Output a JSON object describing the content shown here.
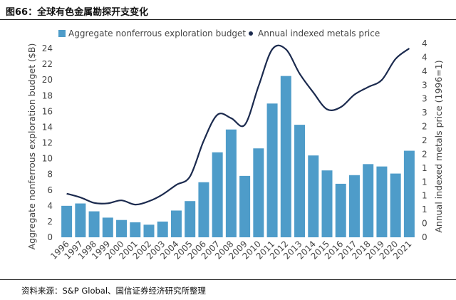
{
  "figure_title": "图66：全球有色金属勘探开支变化",
  "source_note": "资料来源：S&P Global、国信证券经济研究所整理",
  "colors": {
    "bar": "#4e9cc9",
    "line": "#1b2a4e",
    "axis_text": "#444444"
  },
  "chart_data": {
    "type": "bar",
    "categories": [
      "1996",
      "1997",
      "1998",
      "1999",
      "2000",
      "2001",
      "2002",
      "2003",
      "2004",
      "2005",
      "2006",
      "2007",
      "2008",
      "2009",
      "2010",
      "2011",
      "2012",
      "2013",
      "2014",
      "2015",
      "2016",
      "2017",
      "2018",
      "2019",
      "2020",
      "2021"
    ],
    "series": [
      {
        "name": "Aggregate nonferrous exploration budget",
        "type": "bar",
        "axis": "left",
        "values": [
          4.0,
          4.3,
          3.3,
          2.5,
          2.2,
          1.9,
          1.6,
          2.0,
          3.4,
          4.6,
          7.0,
          10.8,
          13.7,
          7.8,
          11.3,
          17.0,
          20.5,
          14.3,
          10.4,
          8.5,
          6.8,
          7.9,
          9.3,
          9.0,
          8.1,
          11.0
        ]
      },
      {
        "name": "Annual indexed metals price",
        "type": "line",
        "axis": "right",
        "values": [
          1.04,
          0.95,
          0.82,
          0.81,
          0.88,
          0.78,
          0.86,
          1.02,
          1.25,
          1.45,
          2.3,
          2.92,
          2.84,
          2.68,
          3.6,
          4.48,
          4.48,
          3.9,
          3.45,
          3.05,
          3.1,
          3.4,
          3.58,
          3.75,
          4.25,
          4.5
        ]
      }
    ],
    "ylabel": "Aggregate nonferrous exploration budget ($B)",
    "y2label": "Annual indexed metals price (1996=1)",
    "ylim": [
      0,
      24
    ],
    "yticks": [
      0,
      2,
      4,
      6,
      8,
      10,
      12,
      14,
      16,
      18,
      20,
      22,
      24
    ],
    "y2ticks": [
      "0",
      "0",
      "1",
      "1",
      "1",
      "1",
      "2",
      "2",
      "2",
      "3",
      "3",
      "3",
      "4",
      "4",
      "4"
    ],
    "y2lim": [
      0,
      4.5
    ],
    "grid": false,
    "legend": "top-left"
  }
}
